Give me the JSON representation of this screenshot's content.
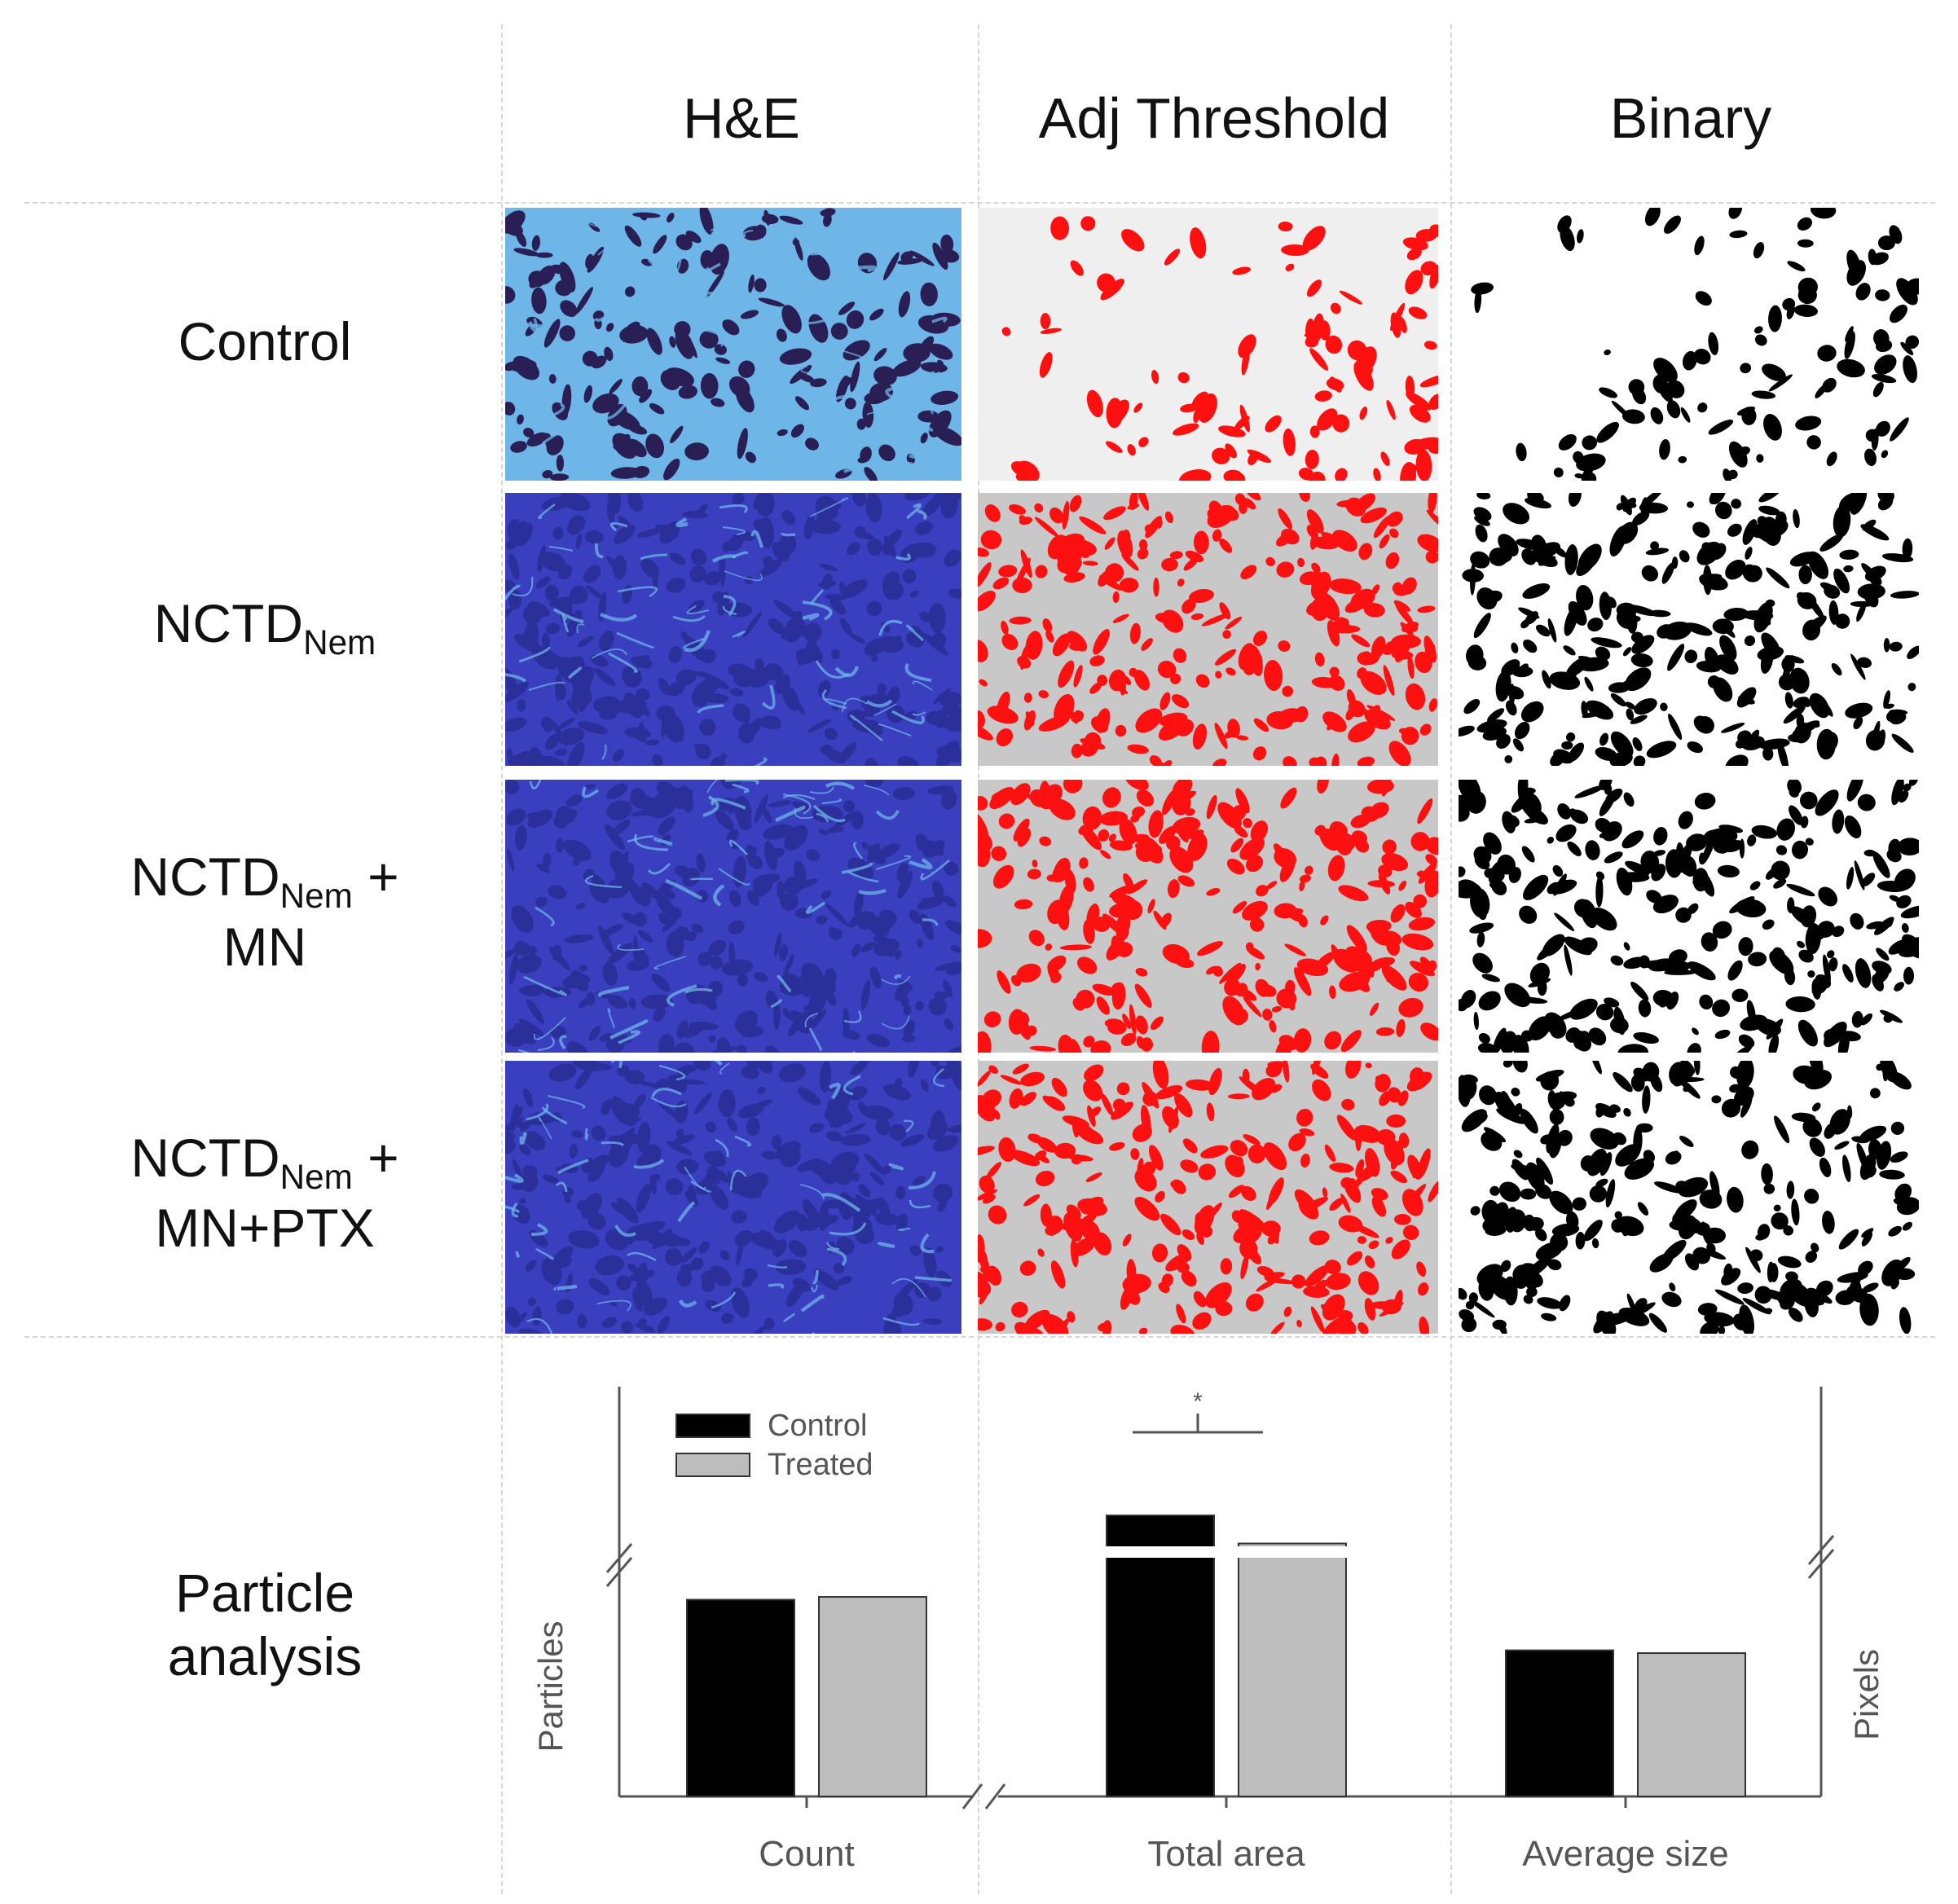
{
  "columns": [
    "H&E",
    "Adj Threshold",
    "Binary"
  ],
  "rows": [
    {
      "lines": [
        [
          "Control",
          ""
        ]
      ]
    },
    {
      "lines": [
        [
          "NCTD",
          "Nem"
        ]
      ]
    },
    {
      "lines": [
        [
          "NCTD",
          "Nem",
          " +"
        ],
        [
          "MN",
          ""
        ]
      ]
    },
    {
      "lines": [
        [
          "NCTD",
          "Nem",
          " +"
        ],
        [
          "MN+PTX",
          ""
        ]
      ]
    }
  ],
  "analysis_label": [
    "Particle",
    "analysis"
  ],
  "colors": {
    "he_blue": "#3a3fbf",
    "he_light": "#6fb6e8",
    "he_dark": "#2a1f55",
    "threshold_red": "#ff1010",
    "threshold_gray": "#c8c8c8",
    "binary_black": "#000000"
  },
  "chart_data": {
    "type": "bar",
    "categories": [
      "Count",
      "Total area",
      "Average size"
    ],
    "series": [
      {
        "name": "Control",
        "color": "#000000",
        "values": [
          0.7,
          1.0,
          0.52
        ]
      },
      {
        "name": "Treated",
        "color": "#bdbdbd",
        "values": [
          0.71,
          0.9,
          0.51
        ]
      }
    ],
    "ylabel_left": "Particles",
    "ylabel_right": "Pixels",
    "axis_break": true,
    "significance": {
      "category": "Total area",
      "marker": "*"
    },
    "legend_position": "top-left",
    "note": "y-axis has no tick labels; values are relative bar heights"
  }
}
